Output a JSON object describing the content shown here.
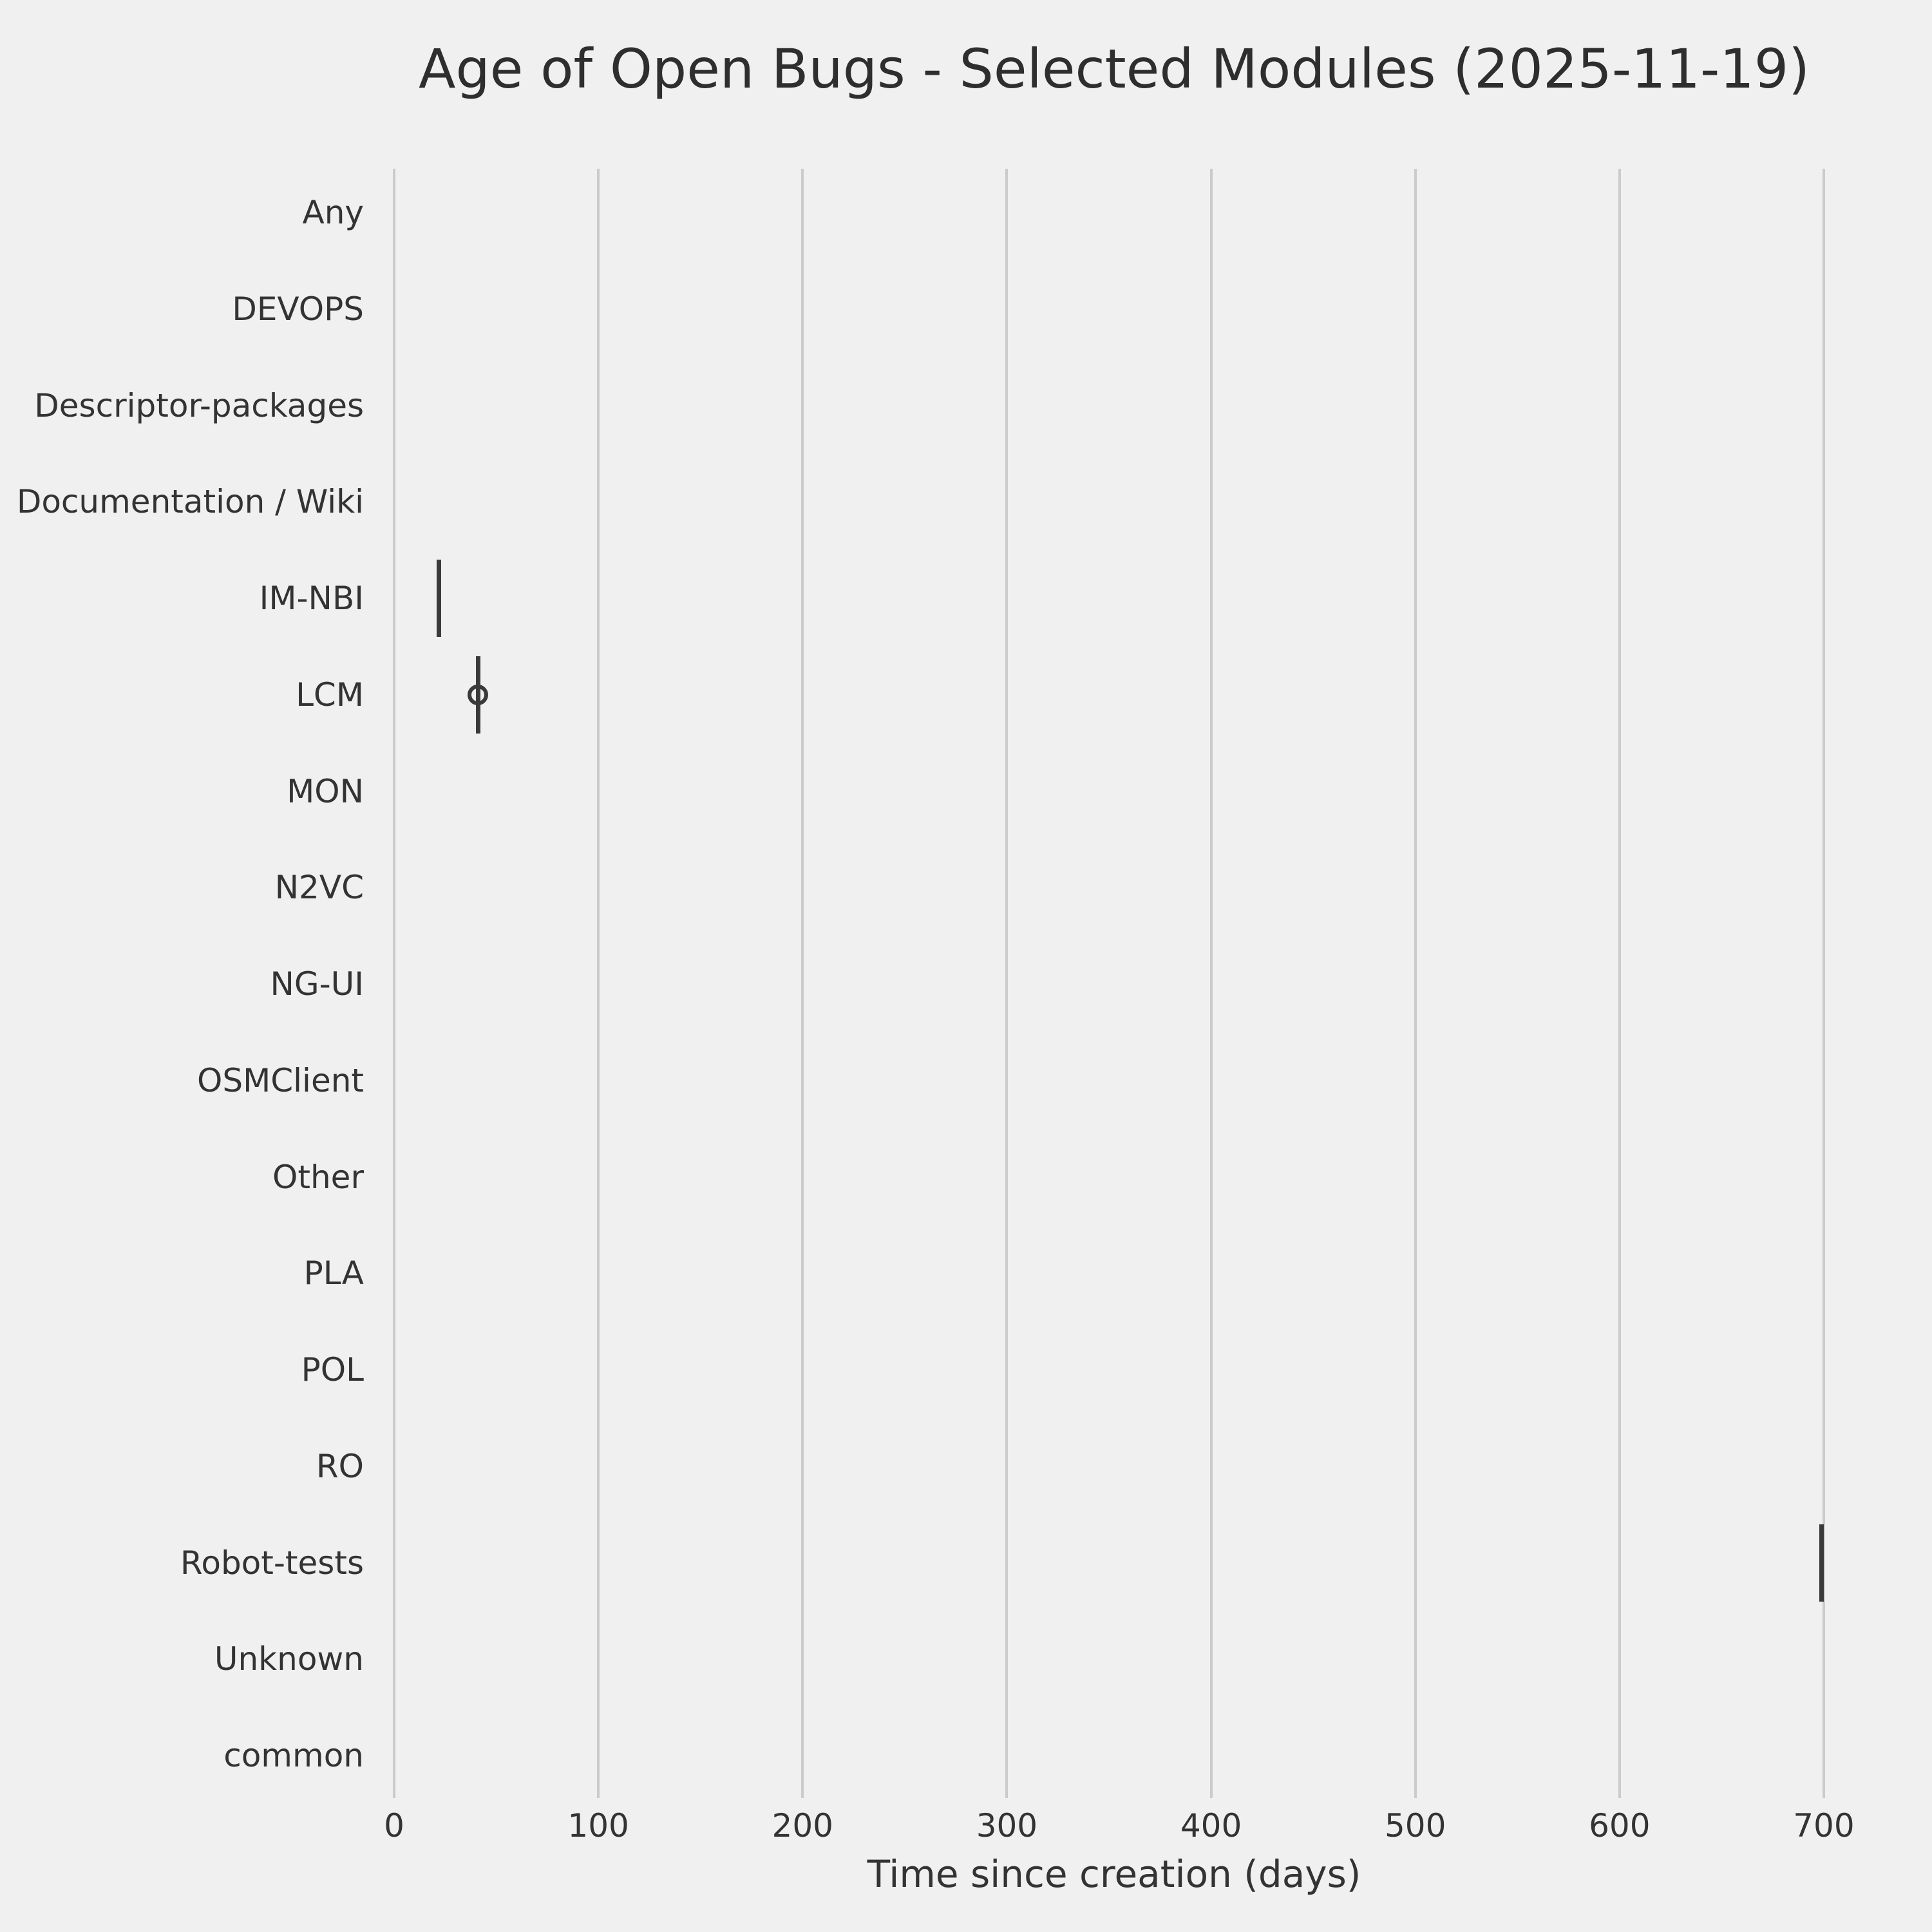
{
  "chart_data": {
    "type": "boxplot",
    "orientation": "horizontal",
    "title": "Age of Open Bugs - Selected Modules (2025-11-19)",
    "xlabel": "Time since creation (days)",
    "ylabel": "",
    "grid": true,
    "legend": false,
    "x_ticks": [
      0,
      100,
      200,
      300,
      400,
      500,
      600,
      700
    ],
    "xlim": [
      -35,
      735
    ],
    "categories": [
      "Any",
      "DEVOPS",
      "Descriptor-packages",
      "Documentation / Wiki",
      "IM-NBI",
      "LCM",
      "MON",
      "N2VC",
      "NG-UI",
      "OSMClient",
      "Other",
      "PLA",
      "POL",
      "RO",
      "Robot-tests",
      "Unknown",
      "common"
    ],
    "boxes": [
      {
        "category": "IM-NBI",
        "whisker_low": 22,
        "q1": 22,
        "median": 22,
        "q3": 22,
        "whisker_high": 22,
        "outliers": []
      },
      {
        "category": "LCM",
        "whisker_low": 41,
        "q1": 41,
        "median": 41,
        "q3": 41,
        "whisker_high": 41,
        "outliers": [
          41
        ]
      },
      {
        "category": "Robot-tests",
        "whisker_low": 699,
        "q1": 699,
        "median": 699,
        "q3": 699,
        "whisker_high": 699,
        "outliers": []
      }
    ],
    "empty_categories": [
      "Any",
      "DEVOPS",
      "Descriptor-packages",
      "Documentation / Wiki",
      "MON",
      "N2VC",
      "NG-UI",
      "OSMClient",
      "Other",
      "PLA",
      "POL",
      "RO",
      "Unknown",
      "common"
    ],
    "colors": {
      "background": "#f0f0f0",
      "grid": "#cbcbcb",
      "box": "#3a3a3a",
      "text": "#333333"
    }
  }
}
